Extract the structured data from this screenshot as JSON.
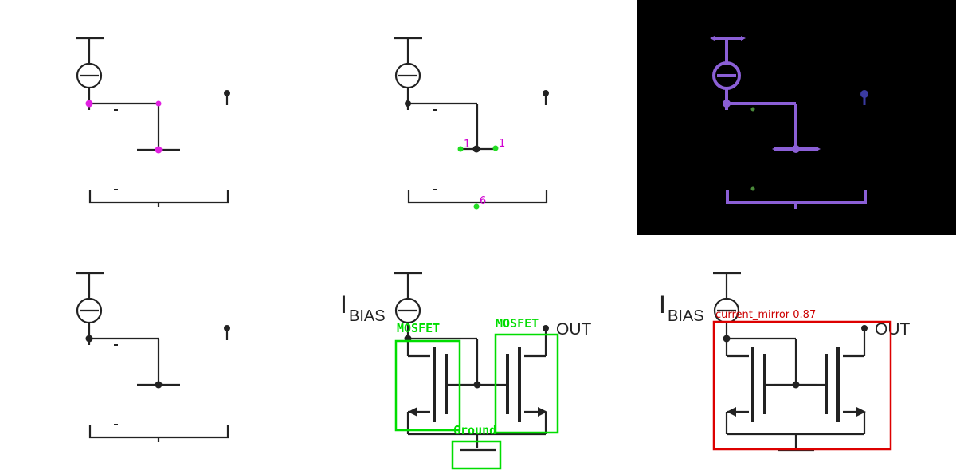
{
  "colors": {
    "wire": "#222222",
    "node_magenta": "#e020e0",
    "node_green": "#22dd22",
    "mask_purple": "#8b5fd6",
    "mask_navy": "#3a3aa0",
    "mask_green": "#4a8a3a",
    "detect_green": "#00dd00",
    "detect_red": "#dd0000"
  },
  "panel_net_points": {
    "net_labels": [
      "1",
      "1",
      "6"
    ]
  },
  "panel_circuit_full": {
    "ibias_main": "I",
    "ibias_sub": "BIAS",
    "out_label": "OUT",
    "detections": [
      {
        "label": "MOSFET"
      },
      {
        "label": "MOSFET"
      },
      {
        "label": "Ground"
      }
    ]
  },
  "panel_circuit_mirror": {
    "ibias_main": "I",
    "ibias_sub": "BIAS",
    "out_label": "OUT",
    "detection_label": "current_mirror 0.87"
  },
  "icons": [
    "current-source-icon",
    "mosfet-icon",
    "ground-icon",
    "node-dot-icon"
  ]
}
